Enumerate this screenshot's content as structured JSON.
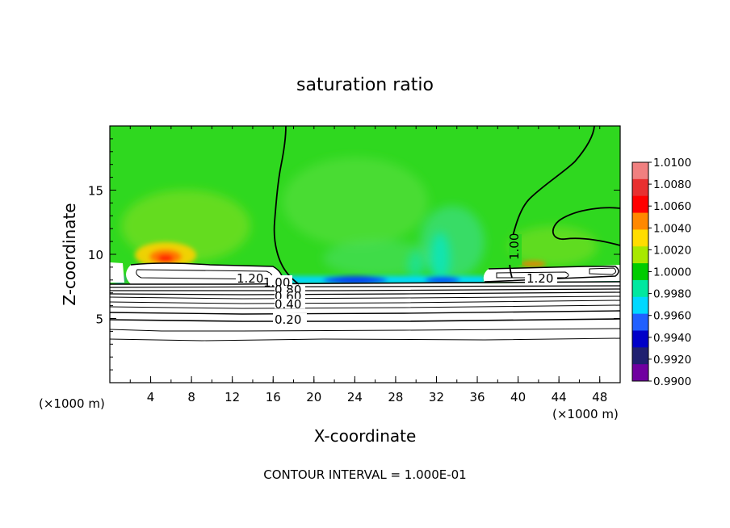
{
  "chart_data": {
    "type": "heatmap",
    "title": "saturation ratio",
    "xlabel": "X-coordinate",
    "ylabel": "Z-coordinate",
    "x_unit_left": "(×1000 m)",
    "x_unit_right": "(×1000 m)",
    "xlim": [
      0,
      50
    ],
    "ylim": [
      0,
      20
    ],
    "x_ticks": [
      "4",
      "8",
      "12",
      "16",
      "20",
      "24",
      "28",
      "32",
      "36",
      "40",
      "44",
      "48"
    ],
    "y_ticks": [
      "5",
      "10",
      "15"
    ],
    "footer": "CONTOUR INTERVAL = 1.000E-01",
    "colorbar": {
      "labels": [
        "1.0100",
        "1.0080",
        "1.0060",
        "1.0040",
        "1.0020",
        "1.0000",
        "0.9980",
        "0.9960",
        "0.9940",
        "0.9920",
        "0.9900"
      ],
      "colors": [
        "#f08080",
        "#e83030",
        "#ff0000",
        "#ff8800",
        "#ffdd00",
        "#a8e800",
        "#00cc00",
        "#00e8a0",
        "#00d8ff",
        "#2060ff",
        "#0000c8",
        "#202070",
        "#7000a0"
      ]
    },
    "contour_labels": [
      "1.20",
      "1.00",
      "0.80",
      "0.60",
      "0.40",
      "0.20",
      "1.20",
      "1.00"
    ],
    "regions": [
      {
        "name": "upper domain",
        "value": 1.0
      },
      {
        "name": "warm anomaly near x=5",
        "value": 1.007
      },
      {
        "name": "dry band x=19-34 near z=7.8",
        "value": 0.993
      },
      {
        "name": "lower domain (contoured region)",
        "value": 0.2
      }
    ]
  }
}
